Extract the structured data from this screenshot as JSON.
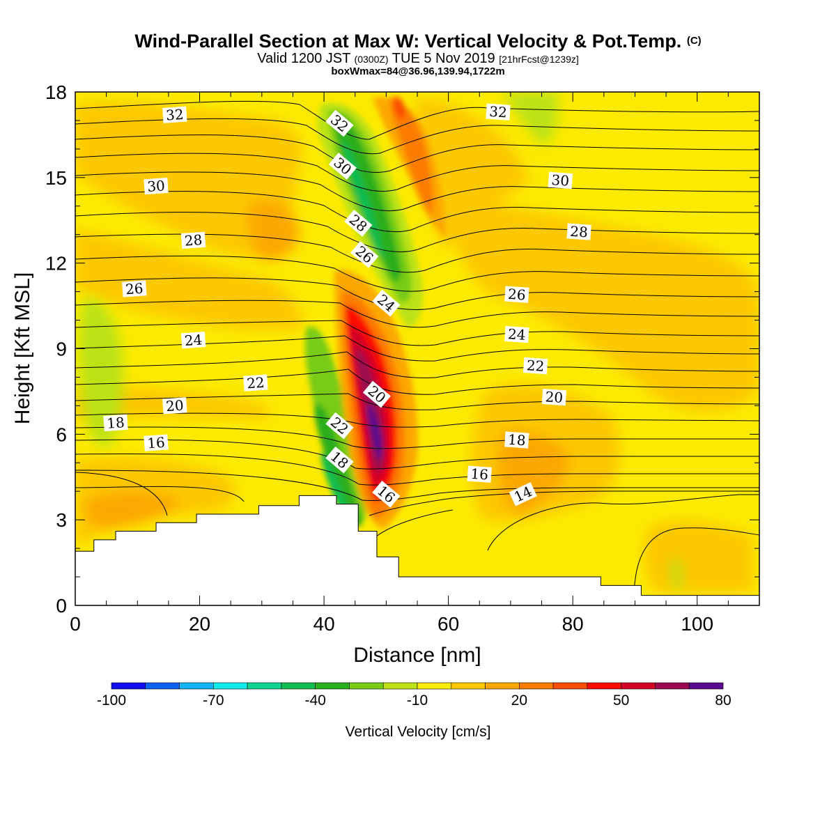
{
  "header": {
    "title_main": "Wind-Parallel Section at Max W: Vertical Velocity & Pot.Temp.",
    "title_mark": "(C)",
    "valid_prefix": "Valid 1200 JST",
    "valid_utc": "(0300Z)",
    "valid_date": "TUE 5 Nov 2019",
    "valid_fcst": "[21hrFcst@1239z]",
    "box_info": "boxWmax=84@36.96,139.94,1722m"
  },
  "chart_data": {
    "type": "contour",
    "xlabel": "Distance [nm]",
    "ylabel": "Height [Kft MSL]",
    "xlim": [
      0,
      110
    ],
    "ylim": [
      0,
      18
    ],
    "x_ticks": [
      "0",
      "20",
      "40",
      "60",
      "80",
      "100"
    ],
    "y_ticks": [
      "0",
      "3",
      "6",
      "9",
      "12",
      "15",
      "18"
    ],
    "fill_variable": "Vertical Velocity",
    "contour_variable": "Potential Temperature",
    "colorbar": {
      "title": "Vertical Velocity [cm/s]",
      "labels": [
        "-100",
        "-70",
        "-40",
        "-10",
        "20",
        "50",
        "80"
      ],
      "colors": [
        "#1010ee",
        "#0a64f0",
        "#12b4f4",
        "#10ecec",
        "#10d490",
        "#10bc50",
        "#2aae1c",
        "#78cc14",
        "#bce214",
        "#fcec00",
        "#fcca00",
        "#fca800",
        "#fc7c00",
        "#fc4c00",
        "#fc0a00",
        "#d20028",
        "#9c0850",
        "#5a0a8c"
      ]
    },
    "terrain_kft": [
      [
        0,
        1.9
      ],
      [
        3,
        2.3
      ],
      [
        6.5,
        2.6
      ],
      [
        13,
        2.9
      ],
      [
        19.5,
        3.2
      ],
      [
        29.5,
        3.5
      ],
      [
        36,
        3.85
      ],
      [
        42,
        3.55
      ],
      [
        45.5,
        2.6
      ],
      [
        48.5,
        1.7
      ],
      [
        52,
        1.0
      ],
      [
        84.5,
        0.7
      ],
      [
        91,
        0.35
      ],
      [
        110,
        0.35
      ]
    ],
    "isentrope_labels": [
      {
        "text": "32",
        "x": 16,
        "y": 17.2
      },
      {
        "text": "32",
        "x": 42.5,
        "y": 16.9
      },
      {
        "text": "32",
        "x": 68,
        "y": 17.3
      },
      {
        "text": "30",
        "x": 13,
        "y": 14.7
      },
      {
        "text": "30",
        "x": 43,
        "y": 15.4
      },
      {
        "text": "30",
        "x": 78,
        "y": 14.9
      },
      {
        "text": "28",
        "x": 19,
        "y": 12.8
      },
      {
        "text": "28",
        "x": 45.5,
        "y": 13.4
      },
      {
        "text": "28",
        "x": 81,
        "y": 13.1
      },
      {
        "text": "26",
        "x": 9.5,
        "y": 11.1
      },
      {
        "text": "26",
        "x": 46.5,
        "y": 12.3
      },
      {
        "text": "26",
        "x": 71,
        "y": 10.9
      },
      {
        "text": "24",
        "x": 19,
        "y": 9.3
      },
      {
        "text": "24",
        "x": 50,
        "y": 10.6
      },
      {
        "text": "24",
        "x": 71,
        "y": 9.5
      },
      {
        "text": "22",
        "x": 29,
        "y": 7.8
      },
      {
        "text": "22",
        "x": 42.5,
        "y": 6.3
      },
      {
        "text": "22",
        "x": 74,
        "y": 8.4
      },
      {
        "text": "20",
        "x": 16,
        "y": 7.0
      },
      {
        "text": "20",
        "x": 48.5,
        "y": 7.4
      },
      {
        "text": "20",
        "x": 77,
        "y": 7.3
      },
      {
        "text": "18",
        "x": 6.5,
        "y": 6.4
      },
      {
        "text": "18",
        "x": 42.5,
        "y": 5.1
      },
      {
        "text": "18",
        "x": 71,
        "y": 5.8
      },
      {
        "text": "16",
        "x": 13,
        "y": 5.7
      },
      {
        "text": "16",
        "x": 50,
        "y": 3.9
      },
      {
        "text": "16",
        "x": 65,
        "y": 4.6
      },
      {
        "text": "14",
        "x": 72,
        "y": 3.9
      }
    ],
    "grid": false
  }
}
